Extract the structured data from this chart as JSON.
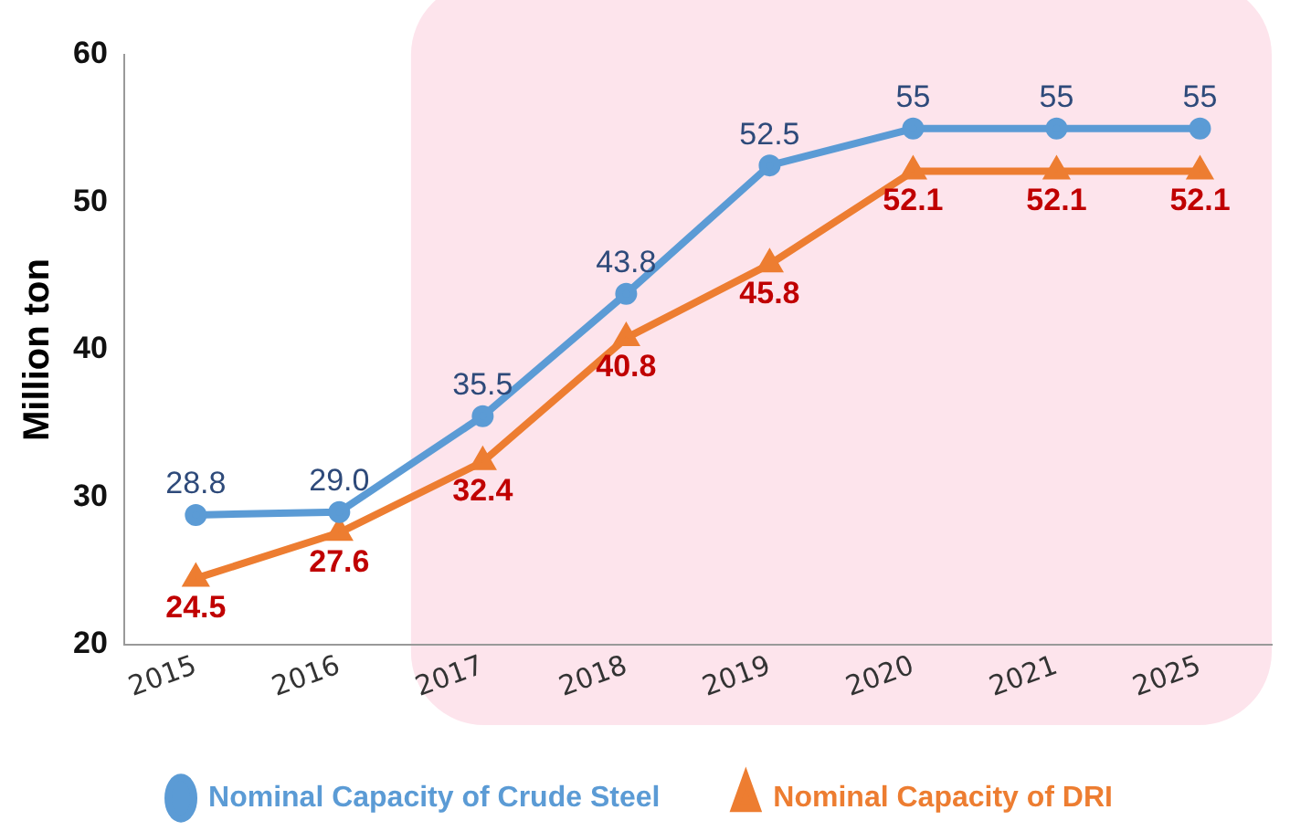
{
  "chart_data": {
    "type": "line",
    "ylabel": "Million ton",
    "categories": [
      "2015",
      "2016",
      "2017",
      "2018",
      "2019",
      "2020",
      "2021",
      "2025"
    ],
    "series": [
      {
        "name": "Nominal Capacity of Crude Steel",
        "color": "#5b9bd5",
        "marker": "circle",
        "values": [
          28.8,
          29.0,
          35.5,
          43.8,
          52.5,
          55,
          55,
          55
        ],
        "value_labels": [
          "28.8",
          "29.0",
          "35.5",
          "43.8",
          "52.5",
          "55",
          "55",
          "55"
        ]
      },
      {
        "name": "Nominal Capacity of DRI",
        "color": "#ed7d31",
        "marker": "triangle",
        "values": [
          24.5,
          27.6,
          32.4,
          40.8,
          45.8,
          52.1,
          52.1,
          52.1
        ],
        "value_labels": [
          "24.5",
          "27.6",
          "32.4",
          "40.8",
          "45.8",
          "52.1",
          "52.1",
          "52.1"
        ]
      }
    ],
    "ylim": [
      20,
      60
    ],
    "yticks": [
      20,
      30,
      40,
      50,
      60
    ],
    "grid": false,
    "legend": "bottom",
    "bands": [
      {
        "axis": "x",
        "from": "2017",
        "to": "2025",
        "color": "#fde4ec"
      }
    ]
  }
}
